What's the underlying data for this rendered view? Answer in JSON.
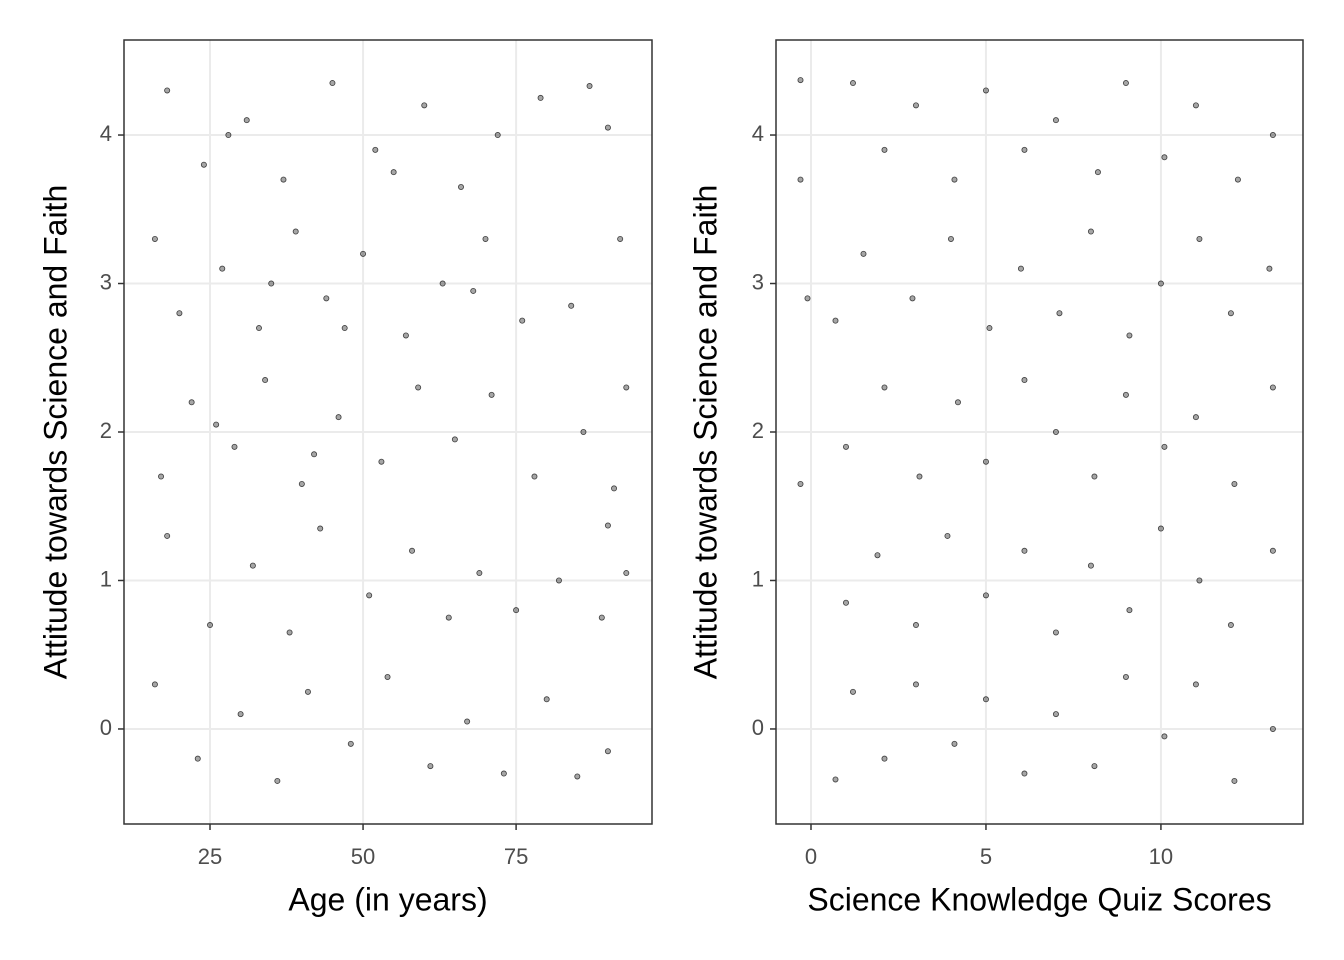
{
  "chart_data": [
    {
      "type": "scatter",
      "xlabel": "Age (in years)",
      "ylabel": "Attitude towards Science and Faith",
      "color": "#000000",
      "grid": true,
      "xlim": [
        10.95,
        97.2
      ],
      "ylim": [
        -0.64,
        4.64
      ],
      "xticks": [
        25,
        50,
        75
      ],
      "yticks": [
        0,
        1,
        2,
        3,
        4
      ],
      "x": [
        18,
        24,
        31,
        37,
        45,
        52,
        60,
        66,
        72,
        79,
        87,
        90,
        28,
        55,
        16,
        20,
        27,
        33,
        39,
        44,
        50,
        57,
        63,
        70,
        76,
        84,
        92,
        35,
        47,
        68,
        17,
        22,
        29,
        34,
        40,
        46,
        53,
        59,
        65,
        71,
        78,
        86,
        93,
        91,
        26,
        42,
        18,
        25,
        32,
        38,
        43,
        51,
        58,
        64,
        69,
        75,
        82,
        90,
        93,
        89,
        16,
        23,
        30,
        36,
        41,
        48,
        54,
        61,
        67,
        73,
        80,
        85,
        90
      ],
      "y": [
        4.3,
        3.8,
        4.1,
        3.7,
        4.35,
        3.9,
        4.2,
        3.65,
        4.0,
        4.25,
        4.33,
        4.05,
        4.0,
        3.75,
        3.3,
        2.8,
        3.1,
        2.7,
        3.35,
        2.9,
        3.2,
        2.65,
        3.0,
        3.3,
        2.75,
        2.85,
        3.3,
        3.0,
        2.7,
        2.95,
        1.7,
        2.2,
        1.9,
        2.35,
        1.65,
        2.1,
        1.8,
        2.3,
        1.95,
        2.25,
        1.7,
        2.0,
        2.3,
        1.62,
        2.05,
        1.85,
        1.3,
        0.7,
        1.1,
        0.65,
        1.35,
        0.9,
        1.2,
        0.75,
        1.05,
        0.8,
        1.0,
        1.37,
        1.05,
        0.75,
        0.3,
        -0.2,
        0.1,
        -0.35,
        0.25,
        -0.1,
        0.35,
        -0.25,
        0.05,
        -0.3,
        0.2,
        -0.32,
        -0.15
      ]
    },
    {
      "type": "scatter",
      "xlabel": "Science Knowledge Quiz Scores",
      "ylabel": "Attitude towards Science and Faith",
      "color": "#000000",
      "grid": true,
      "xlim": [
        -1.0,
        14.06
      ],
      "ylim": [
        -0.64,
        4.64
      ],
      "xticks": [
        0,
        5,
        10
      ],
      "yticks": [
        0,
        1,
        2,
        3,
        4
      ],
      "x": [
        -0.3,
        1.2,
        2.1,
        3.0,
        4.1,
        5.0,
        6.1,
        7.0,
        8.2,
        9.0,
        10.1,
        11.0,
        12.2,
        13.2,
        -0.3,
        0.7,
        1.5,
        2.9,
        4.0,
        5.1,
        6.0,
        7.1,
        8.0,
        9.1,
        10.0,
        11.1,
        12.0,
        13.1,
        -0.1,
        -0.3,
        1.0,
        2.1,
        3.1,
        4.2,
        5.0,
        6.1,
        7.0,
        8.1,
        9.0,
        10.1,
        11.0,
        12.1,
        13.2,
        1.0,
        1.9,
        3.0,
        3.9,
        5.0,
        6.1,
        7.0,
        8.0,
        9.1,
        10.0,
        11.1,
        12.0,
        13.2,
        0.7,
        1.2,
        2.1,
        3.0,
        4.1,
        5.0,
        6.1,
        7.0,
        8.1,
        9.0,
        10.1,
        11.0,
        12.1,
        13.2
      ],
      "y": [
        4.37,
        4.35,
        3.9,
        4.2,
        3.7,
        4.3,
        3.9,
        4.1,
        3.75,
        4.35,
        3.85,
        4.2,
        3.7,
        4.0,
        3.7,
        2.75,
        3.2,
        2.9,
        3.3,
        2.7,
        3.1,
        2.8,
        3.35,
        2.65,
        3.0,
        3.3,
        2.8,
        3.1,
        2.9,
        1.65,
        1.9,
        2.3,
        1.7,
        2.2,
        1.8,
        2.35,
        2.0,
        1.7,
        2.25,
        1.9,
        2.1,
        1.65,
        2.3,
        0.85,
        1.17,
        0.7,
        1.3,
        0.9,
        1.2,
        0.65,
        1.1,
        0.8,
        1.35,
        1.0,
        0.7,
        1.2,
        -0.34,
        0.25,
        -0.2,
        0.3,
        -0.1,
        0.2,
        -0.3,
        0.1,
        -0.25,
        0.35,
        -0.05,
        0.3,
        -0.35,
        0.0
      ]
    }
  ]
}
